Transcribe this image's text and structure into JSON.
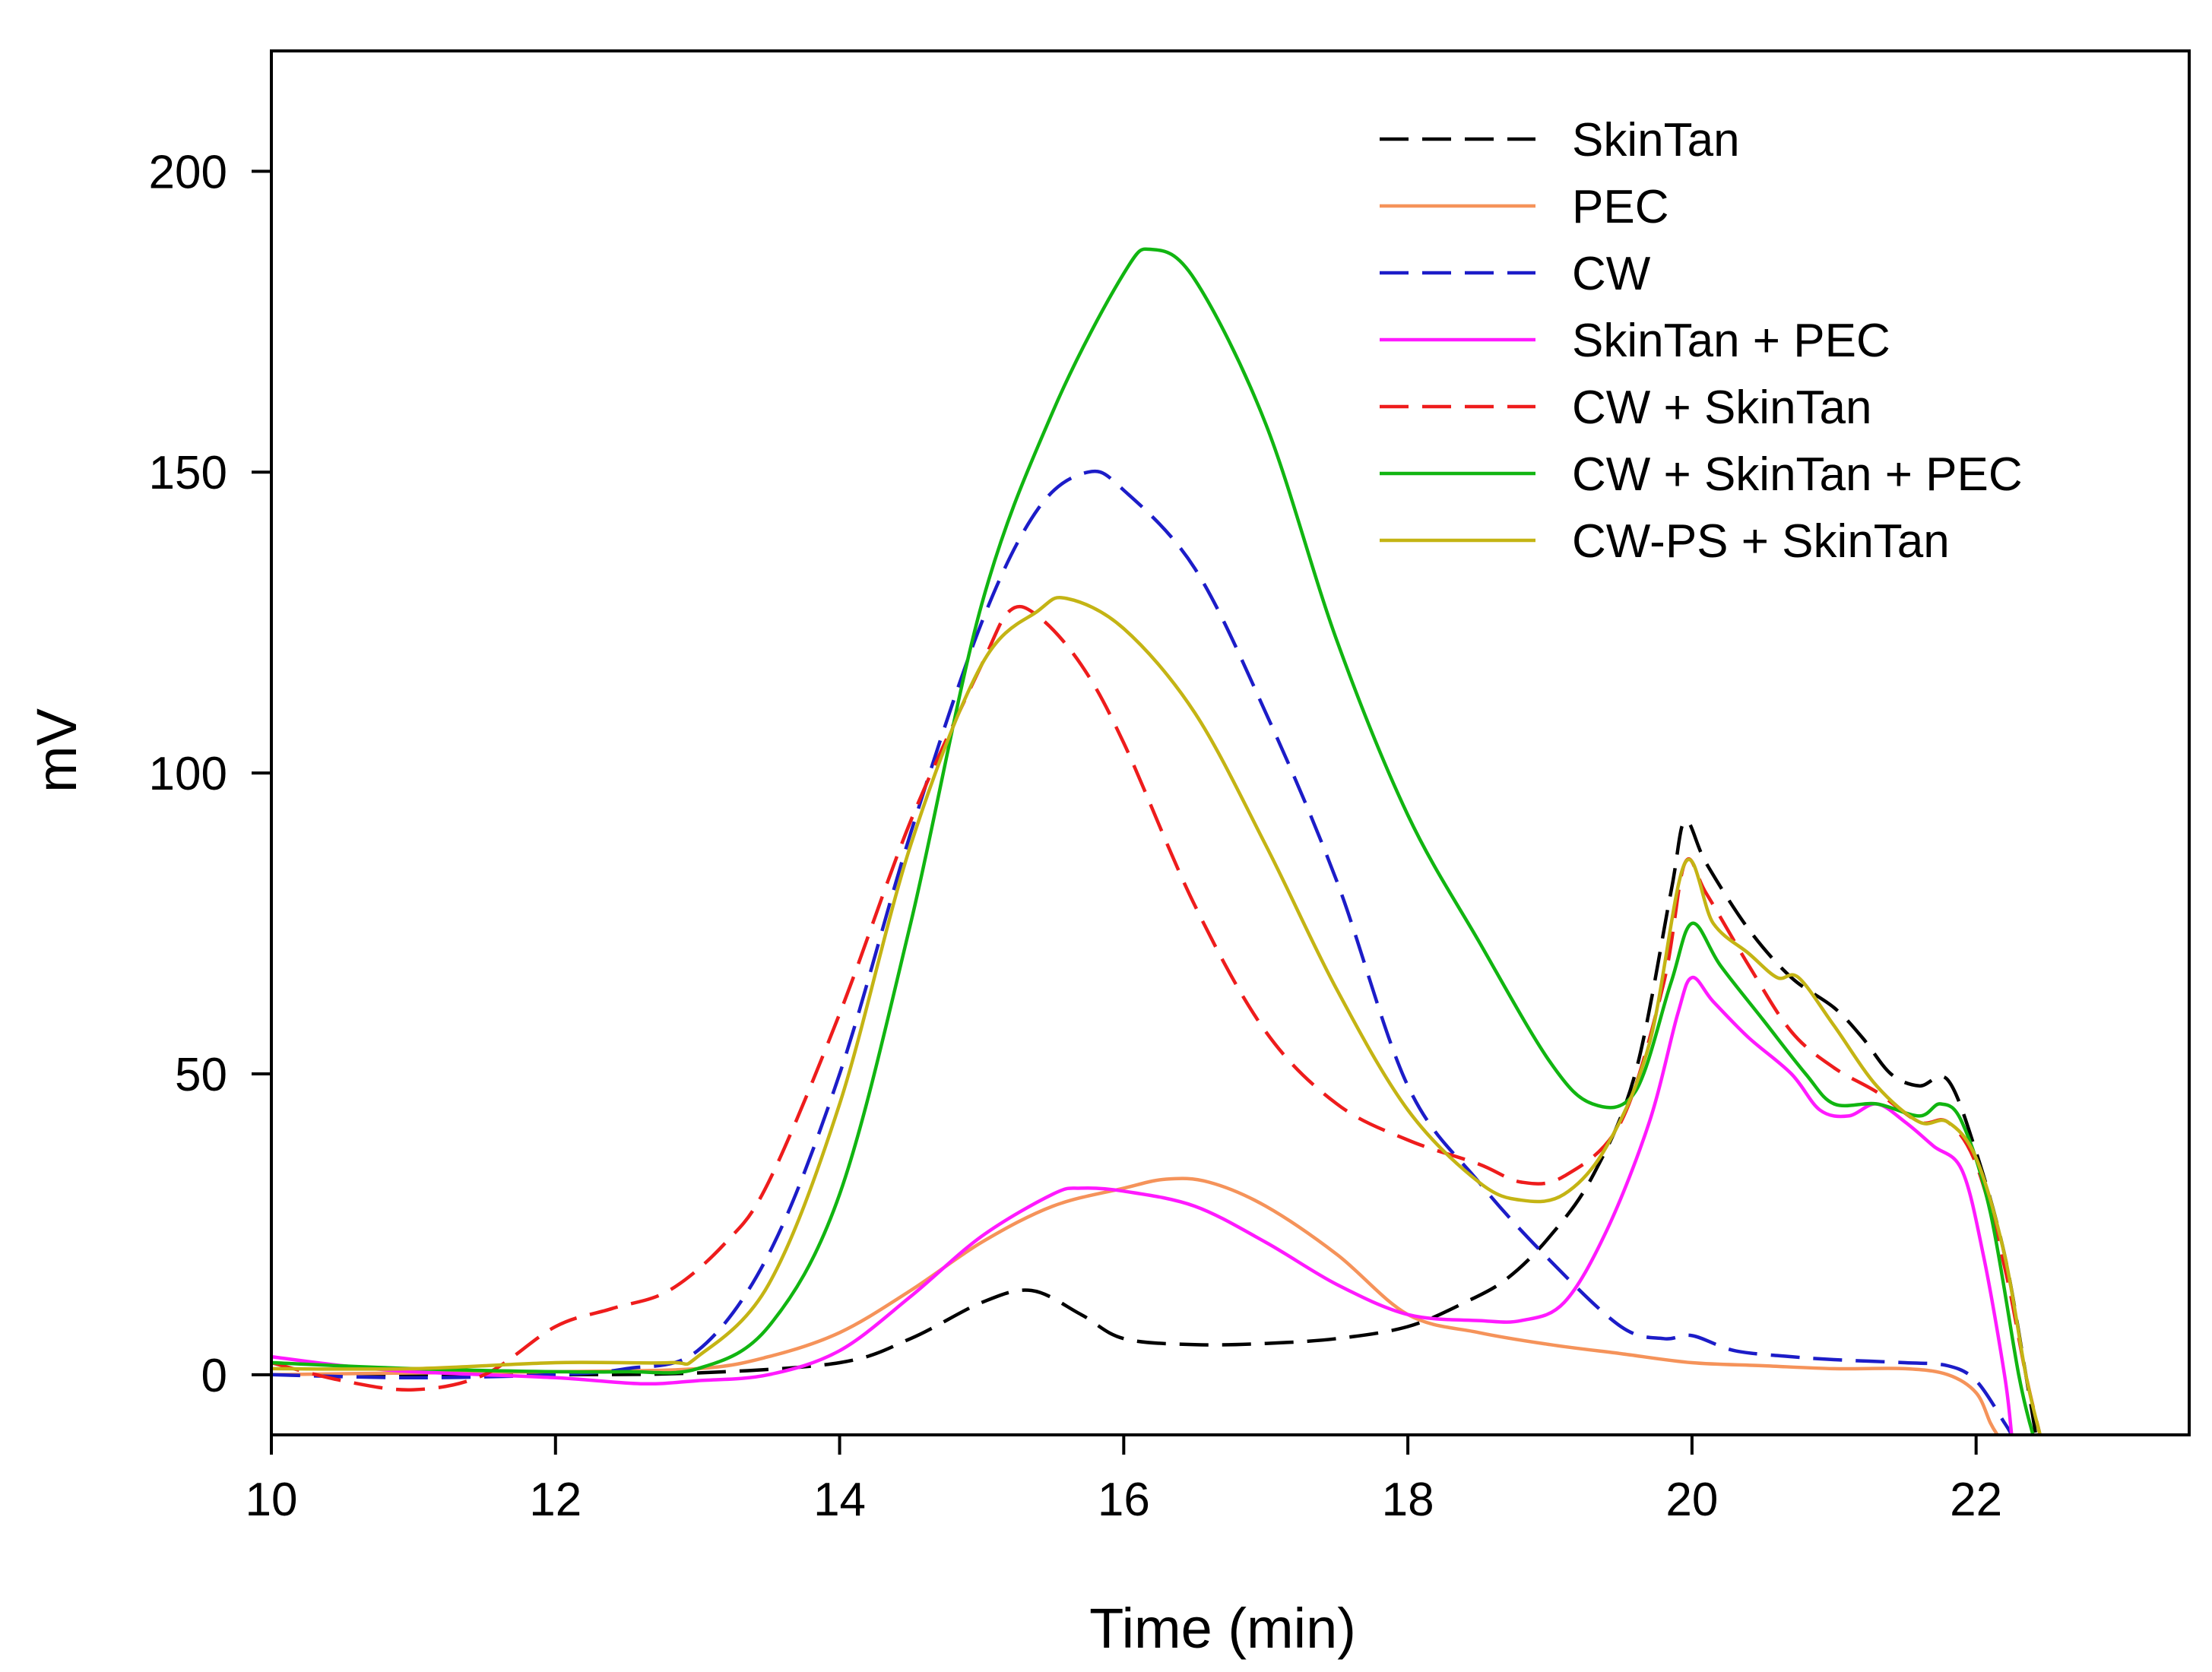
{
  "chart_data": {
    "type": "line",
    "title": "",
    "xlabel": "Time (min)",
    "ylabel": "mV",
    "xlim": [
      10,
      23.5
    ],
    "ylim": [
      -10,
      220
    ],
    "xticks": [
      10,
      12,
      14,
      16,
      18,
      20,
      22
    ],
    "yticks": [
      0,
      50,
      100,
      150,
      200
    ],
    "xtick_labels": [
      "10",
      "12",
      "14",
      "16",
      "18",
      "20",
      "22"
    ],
    "ytick_labels": [
      "0",
      "50",
      "100",
      "150",
      "200"
    ],
    "grid": false,
    "legend_position": "top-right",
    "series": [
      {
        "name": "SkinTan",
        "color": "#000000",
        "dash": "dashed",
        "points": [
          [
            10,
            0
          ],
          [
            11,
            0
          ],
          [
            12,
            0
          ],
          [
            13,
            0.3
          ],
          [
            14,
            2
          ],
          [
            14.5,
            6
          ],
          [
            15,
            12
          ],
          [
            15.35,
            14
          ],
          [
            15.7,
            10
          ],
          [
            16,
            6
          ],
          [
            16.5,
            5
          ],
          [
            17,
            5.2
          ],
          [
            17.5,
            6
          ],
          [
            18,
            8
          ],
          [
            18.4,
            12
          ],
          [
            18.7,
            16
          ],
          [
            19,
            23
          ],
          [
            19.3,
            33
          ],
          [
            19.6,
            50
          ],
          [
            19.85,
            80
          ],
          [
            19.95,
            92
          ],
          [
            20.1,
            85
          ],
          [
            20.4,
            74
          ],
          [
            20.7,
            66
          ],
          [
            21,
            61
          ],
          [
            21.2,
            56
          ],
          [
            21.4,
            50
          ],
          [
            21.6,
            48
          ],
          [
            21.8,
            49
          ],
          [
            22,
            37
          ],
          [
            22.2,
            20
          ],
          [
            22.35,
            0
          ],
          [
            22.42,
            -10
          ]
        ]
      },
      {
        "name": "PEC",
        "color": "#f5935a",
        "dash": "solid",
        "points": [
          [
            10,
            0
          ],
          [
            11,
            0.3
          ],
          [
            12,
            0.5
          ],
          [
            13,
            1
          ],
          [
            13.5,
            3
          ],
          [
            14,
            7
          ],
          [
            14.5,
            14
          ],
          [
            15,
            22
          ],
          [
            15.5,
            28
          ],
          [
            16,
            31
          ],
          [
            16.3,
            32.5
          ],
          [
            16.6,
            32
          ],
          [
            17,
            28
          ],
          [
            17.5,
            20
          ],
          [
            18,
            10
          ],
          [
            18.5,
            7
          ],
          [
            19,
            5
          ],
          [
            19.5,
            3.5
          ],
          [
            20,
            2
          ],
          [
            20.5,
            1.5
          ],
          [
            21,
            1
          ],
          [
            21.5,
            1
          ],
          [
            21.8,
            0
          ],
          [
            22,
            -3
          ],
          [
            22.1,
            -8
          ],
          [
            22.15,
            -10
          ]
        ]
      },
      {
        "name": "CW",
        "color": "#1c1cc8",
        "dash": "dashed",
        "points": [
          [
            10,
            0
          ],
          [
            11,
            -0.5
          ],
          [
            12,
            0
          ],
          [
            12.5,
            1
          ],
          [
            13,
            4
          ],
          [
            13.5,
            20
          ],
          [
            14,
            50
          ],
          [
            14.5,
            90
          ],
          [
            15,
            125
          ],
          [
            15.4,
            144
          ],
          [
            15.75,
            150
          ],
          [
            16,
            147
          ],
          [
            16.5,
            134
          ],
          [
            17,
            110
          ],
          [
            17.5,
            82
          ],
          [
            18,
            48
          ],
          [
            18.5,
            32
          ],
          [
            19,
            19
          ],
          [
            19.5,
            8
          ],
          [
            19.8,
            6
          ],
          [
            20,
            6.5
          ],
          [
            20.3,
            4
          ],
          [
            20.7,
            3
          ],
          [
            21,
            2.5
          ],
          [
            21.5,
            2
          ],
          [
            21.8,
            1.5
          ],
          [
            22,
            -1
          ],
          [
            22.2,
            -8
          ],
          [
            22.25,
            -10
          ]
        ]
      },
      {
        "name": "SkinTan + PEC",
        "color": "#ff1aff",
        "dash": "solid",
        "points": [
          [
            10,
            3
          ],
          [
            10.5,
            1.5
          ],
          [
            11,
            0.5
          ],
          [
            12,
            -0.5
          ],
          [
            12.6,
            -1.5
          ],
          [
            13,
            -1
          ],
          [
            13.5,
            0
          ],
          [
            14,
            4
          ],
          [
            14.5,
            13
          ],
          [
            15,
            23
          ],
          [
            15.5,
            30
          ],
          [
            15.7,
            31
          ],
          [
            16,
            30.5
          ],
          [
            16.5,
            28
          ],
          [
            17,
            22
          ],
          [
            17.5,
            15
          ],
          [
            18,
            10
          ],
          [
            18.5,
            9
          ],
          [
            18.8,
            9
          ],
          [
            19.1,
            12
          ],
          [
            19.4,
            24
          ],
          [
            19.7,
            42
          ],
          [
            19.9,
            60
          ],
          [
            20,
            66
          ],
          [
            20.15,
            62
          ],
          [
            20.4,
            56
          ],
          [
            20.7,
            50
          ],
          [
            20.9,
            44
          ],
          [
            21.1,
            43
          ],
          [
            21.3,
            45
          ],
          [
            21.5,
            42
          ],
          [
            21.7,
            38
          ],
          [
            21.9,
            34
          ],
          [
            22.05,
            20
          ],
          [
            22.2,
            0
          ],
          [
            22.25,
            -10
          ]
        ]
      },
      {
        "name": "CW + SkinTan",
        "color": "#ee1c1c",
        "dash": "dashed",
        "points": [
          [
            10,
            2
          ],
          [
            10.5,
            -1
          ],
          [
            11,
            -2.5
          ],
          [
            11.5,
            0
          ],
          [
            12,
            8
          ],
          [
            12.4,
            11
          ],
          [
            12.8,
            14
          ],
          [
            13.2,
            22
          ],
          [
            13.5,
            32
          ],
          [
            14,
            60
          ],
          [
            14.5,
            92
          ],
          [
            15,
            118
          ],
          [
            15.2,
            127
          ],
          [
            15.4,
            126
          ],
          [
            15.7,
            118
          ],
          [
            16,
            105
          ],
          [
            16.5,
            78
          ],
          [
            17,
            57
          ],
          [
            17.5,
            45
          ],
          [
            18,
            39
          ],
          [
            18.5,
            35
          ],
          [
            18.8,
            32
          ],
          [
            19.1,
            33
          ],
          [
            19.5,
            42
          ],
          [
            19.8,
            65
          ],
          [
            19.95,
            85
          ],
          [
            20.1,
            80
          ],
          [
            20.4,
            68
          ],
          [
            20.7,
            57
          ],
          [
            21,
            51
          ],
          [
            21.3,
            47
          ],
          [
            21.6,
            42
          ],
          [
            21.8,
            42
          ],
          [
            22,
            35
          ],
          [
            22.2,
            18
          ],
          [
            22.35,
            0
          ],
          [
            22.45,
            -10
          ]
        ]
      },
      {
        "name": "CW + SkinTan + PEC",
        "color": "#11b511",
        "dash": "solid",
        "points": [
          [
            10,
            2
          ],
          [
            11,
            1
          ],
          [
            12,
            0.5
          ],
          [
            12.5,
            0.5
          ],
          [
            13,
            1
          ],
          [
            13.5,
            8
          ],
          [
            14,
            30
          ],
          [
            14.5,
            75
          ],
          [
            15,
            128
          ],
          [
            15.5,
            160
          ],
          [
            16,
            183
          ],
          [
            16.2,
            187
          ],
          [
            16.5,
            182
          ],
          [
            17,
            158
          ],
          [
            17.5,
            122
          ],
          [
            18,
            93
          ],
          [
            18.5,
            72
          ],
          [
            19,
            52
          ],
          [
            19.3,
            45
          ],
          [
            19.6,
            47
          ],
          [
            19.85,
            65
          ],
          [
            20,
            75
          ],
          [
            20.2,
            68
          ],
          [
            20.5,
            59
          ],
          [
            20.8,
            50
          ],
          [
            21,
            45
          ],
          [
            21.3,
            45
          ],
          [
            21.6,
            43
          ],
          [
            21.75,
            45
          ],
          [
            21.9,
            42
          ],
          [
            22.1,
            27
          ],
          [
            22.3,
            0
          ],
          [
            22.4,
            -10
          ]
        ]
      },
      {
        "name": "CW-PS + SkinTan",
        "color": "#c4b414",
        "dash": "solid",
        "points": [
          [
            10,
            1
          ],
          [
            11,
            1
          ],
          [
            12,
            2
          ],
          [
            12.8,
            2
          ],
          [
            13,
            3
          ],
          [
            13.5,
            15
          ],
          [
            14,
            45
          ],
          [
            14.5,
            88
          ],
          [
            15,
            118
          ],
          [
            15.4,
            127
          ],
          [
            15.6,
            129
          ],
          [
            16,
            124
          ],
          [
            16.5,
            110
          ],
          [
            17,
            88
          ],
          [
            17.5,
            64
          ],
          [
            18,
            44
          ],
          [
            18.5,
            32
          ],
          [
            18.8,
            29
          ],
          [
            19.1,
            30
          ],
          [
            19.4,
            38
          ],
          [
            19.7,
            55
          ],
          [
            19.95,
            85
          ],
          [
            20.15,
            75
          ],
          [
            20.4,
            70
          ],
          [
            20.6,
            66
          ],
          [
            20.75,
            66
          ],
          [
            21,
            58
          ],
          [
            21.3,
            48
          ],
          [
            21.6,
            42
          ],
          [
            21.8,
            42
          ],
          [
            22,
            36
          ],
          [
            22.2,
            20
          ],
          [
            22.35,
            0
          ],
          [
            22.45,
            -10
          ]
        ]
      }
    ]
  }
}
